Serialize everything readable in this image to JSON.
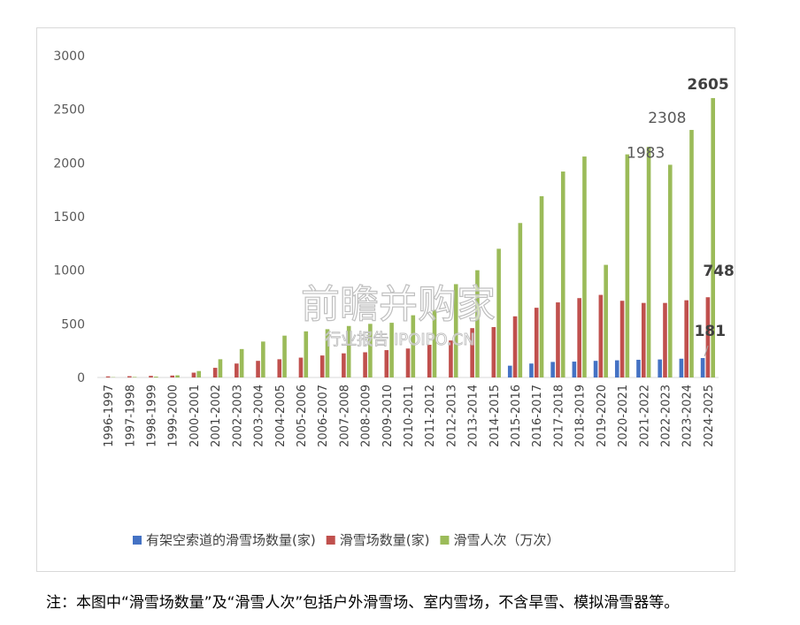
{
  "chart_data": {
    "type": "bar",
    "categories": [
      "1996-1997",
      "1997-1998",
      "1998-1999",
      "1999-2000",
      "2000-2001",
      "2001-2002",
      "2002-2003",
      "2003-2004",
      "2004-2005",
      "2005-2006",
      "2006-2007",
      "2007-2008",
      "2008-2009",
      "2009-2010",
      "2010-2011",
      "2011-2012",
      "2012-2013",
      "2013-2014",
      "2014-2015",
      "2015-2016",
      "2016-2017",
      "2017-2018",
      "2018-2019",
      "2019-2020",
      "2020-2021",
      "2021-2022",
      "2022-2023",
      "2023-2024",
      "2024-2025"
    ],
    "series": [
      {
        "name": "有架空索道的滑雪场数量(家)",
        "color": "#4472c4",
        "values": [
          0,
          0,
          0,
          0,
          0,
          0,
          0,
          0,
          0,
          0,
          0,
          0,
          0,
          0,
          0,
          0,
          0,
          0,
          0,
          110,
          130,
          145,
          148,
          155,
          160,
          165,
          168,
          175,
          181
        ]
      },
      {
        "name": "滑雪场数量(家)",
        "color": "#c0504d",
        "values": [
          10,
          12,
          15,
          18,
          45,
          90,
          130,
          155,
          170,
          185,
          205,
          225,
          235,
          255,
          270,
          305,
          345,
          460,
          470,
          570,
          650,
          700,
          740,
          770,
          715,
          695,
          695,
          720,
          748
        ]
      },
      {
        "name": "滑雪人次（万次）",
        "color": "#9bbb59",
        "values": [
          3,
          5,
          8,
          20,
          60,
          170,
          265,
          335,
          390,
          430,
          450,
          480,
          500,
          510,
          580,
          630,
          870,
          1000,
          1200,
          1440,
          1690,
          1920,
          2060,
          1050,
          2080,
          2150,
          1983,
          2308,
          2605
        ]
      }
    ],
    "ylim": [
      0,
      3000
    ],
    "yticks": [
      "0",
      "500",
      "1000",
      "1500",
      "2000",
      "2500",
      "3000"
    ],
    "legend": "bottom",
    "grid": false,
    "annotations": [
      {
        "text": "2605",
        "series": 2,
        "index": 28,
        "bold": true
      },
      {
        "text": "2308",
        "series": 2,
        "index": 27,
        "bold": false
      },
      {
        "text": "1983",
        "series": 2,
        "index": 26,
        "bold": false
      },
      {
        "text": "748",
        "series": 1,
        "index": 28,
        "bold": true
      },
      {
        "text": "181",
        "series": 0,
        "index": 28,
        "bold": true
      }
    ]
  },
  "watermark": {
    "brand": "前瞻并购家",
    "sub": "行业报告 IPOIPO.CN"
  },
  "footnote": "注：本图中“滑雪场数量”及“滑雪人次”包括户外滑雪场、室内雪场，不含旱雪、模拟滑雪器等。"
}
